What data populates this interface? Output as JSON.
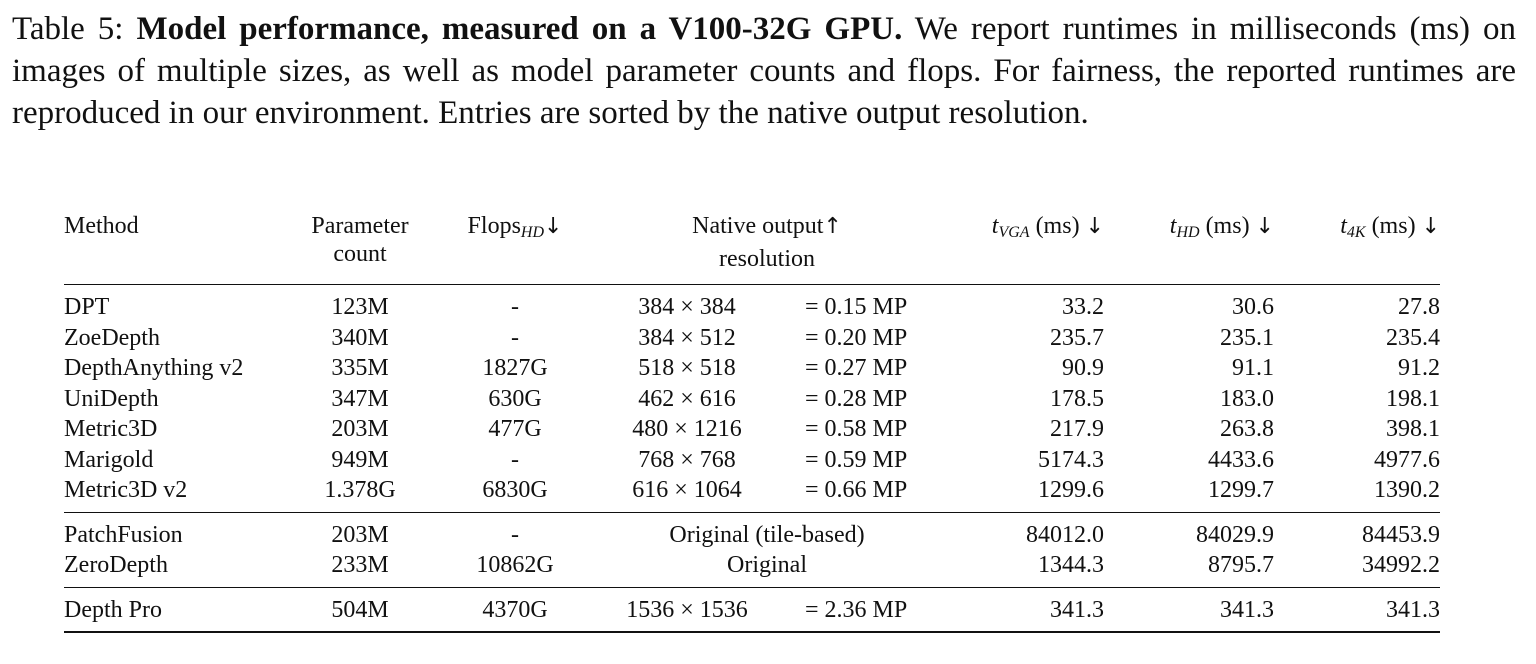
{
  "caption": {
    "label": "Table 5:",
    "bold": "Model performance, measured on a V100-32G GPU.",
    "text": "We report runtimes in milliseconds (ms) on images of multiple sizes, as well as model parameter counts and flops. For fairness, the reported runtimes are reproduced in our environment. Entries are sorted by the native output resolution."
  },
  "table": {
    "headers": {
      "method": "Method",
      "params_line1": "Parameter",
      "params_line2": "count",
      "flops": "Flops",
      "flops_sub": "HD",
      "flops_arrow": "↓",
      "native_line1": "Native output",
      "native_arrow": "↑",
      "native_line2": "resolution",
      "t_var": "t",
      "t_unit": "(ms)",
      "t_arrow": "↓",
      "tvga_sub": "VGA",
      "thd_sub": "HD",
      "t4k_sub": "4K"
    },
    "group1": [
      {
        "method": "DPT",
        "params": "123M",
        "flops": "-",
        "res": "384 × 384",
        "mp": "= 0.15 MP",
        "tvga": "33.2",
        "thd": "30.6",
        "t4k": "27.8"
      },
      {
        "method": "ZoeDepth",
        "params": "340M",
        "flops": "-",
        "res": "384 × 512",
        "mp": "= 0.20 MP",
        "tvga": "235.7",
        "thd": "235.1",
        "t4k": "235.4"
      },
      {
        "method": "DepthAnything v2",
        "params": "335M",
        "flops": "1827G",
        "res": "518 × 518",
        "mp": "= 0.27 MP",
        "tvga": "90.9",
        "thd": "91.1",
        "t4k": "91.2"
      },
      {
        "method": "UniDepth",
        "params": "347M",
        "flops": "630G",
        "res": "462 × 616",
        "mp": "= 0.28 MP",
        "tvga": "178.5",
        "thd": "183.0",
        "t4k": "198.1"
      },
      {
        "method": "Metric3D",
        "params": "203M",
        "flops": "477G",
        "res": "480 × 1216",
        "mp": "= 0.58 MP",
        "tvga": "217.9",
        "thd": "263.8",
        "t4k": "398.1"
      },
      {
        "method": "Marigold",
        "params": "949M",
        "flops": "-",
        "res": "768 × 768",
        "mp": "= 0.59 MP",
        "tvga": "5174.3",
        "thd": "4433.6",
        "t4k": "4977.6"
      },
      {
        "method": "Metric3D v2",
        "params": "1.378G",
        "flops": "6830G",
        "res": "616 × 1064",
        "mp": "= 0.66 MP",
        "tvga": "1299.6",
        "thd": "1299.7",
        "t4k": "1390.2"
      }
    ],
    "group2": [
      {
        "method": "PatchFusion",
        "params": "203M",
        "flops": "-",
        "native": "Original (tile-based)",
        "tvga": "84012.0",
        "thd": "84029.9",
        "t4k": "84453.9"
      },
      {
        "method": "ZeroDepth",
        "params": "233M",
        "flops": "10862G",
        "native": "Original",
        "tvga": "1344.3",
        "thd": "8795.7",
        "t4k": "34992.2"
      }
    ],
    "group3": [
      {
        "method": "Depth Pro",
        "params": "504M",
        "flops": "4370G",
        "res": "1536 × 1536",
        "mp": "= 2.36 MP",
        "tvga": "341.3",
        "thd": "341.3",
        "t4k": "341.3"
      }
    ]
  }
}
